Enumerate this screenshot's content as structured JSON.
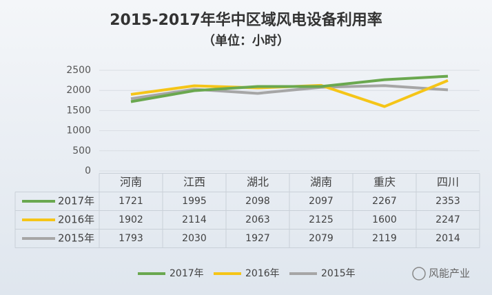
{
  "chart_data": {
    "type": "line",
    "title": "2015-2017年华中区域风电设备利用率",
    "subtitle": "（单位：小时）",
    "categories": [
      "河南",
      "江西",
      "湖北",
      "湖南",
      "重庆",
      "四川"
    ],
    "series": [
      {
        "name": "2017年",
        "color": "#6aa84f",
        "values": [
          1721,
          1995,
          2098,
          2097,
          2267,
          2353
        ]
      },
      {
        "name": "2016年",
        "color": "#f5c518",
        "values": [
          1902,
          2114,
          2063,
          2125,
          1600,
          2247
        ]
      },
      {
        "name": "2015年",
        "color": "#a6a6a6",
        "values": [
          1793,
          2030,
          1927,
          2079,
          2119,
          2014
        ]
      }
    ],
    "ylim": [
      0,
      2500
    ],
    "yticks": [
      0,
      500,
      1000,
      1500,
      2000,
      2500
    ],
    "grid": true,
    "watermark": "风能产业"
  }
}
